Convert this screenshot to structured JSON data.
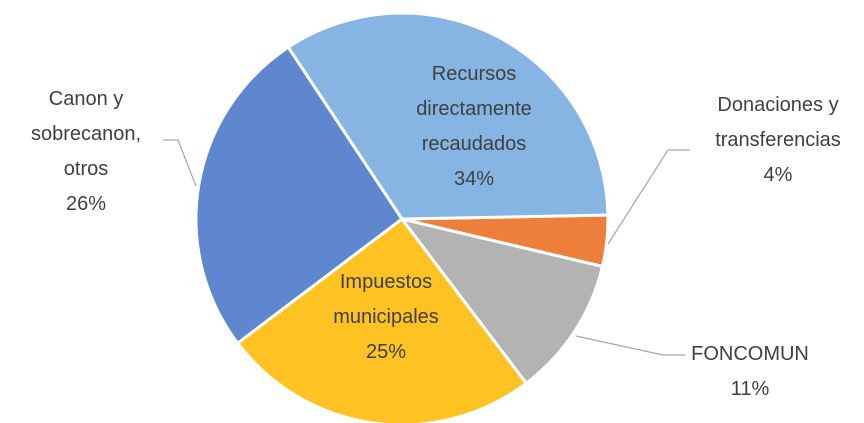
{
  "chart_data": {
    "type": "pie",
    "categories": [
      "Recursos directamente recaudados",
      "Donaciones y transferencias",
      "FONCOMUN",
      "Impuestos municipales",
      "Canon y sobrecanon, otros"
    ],
    "values": [
      34,
      4,
      11,
      25,
      26
    ],
    "value_labels": [
      "34%",
      "4%",
      "11%",
      "25%",
      "26%"
    ],
    "colors": [
      "#86b4e3",
      "#ee7f3a",
      "#b3b3b3",
      "#ffc223",
      "#5f87cf"
    ]
  }
}
